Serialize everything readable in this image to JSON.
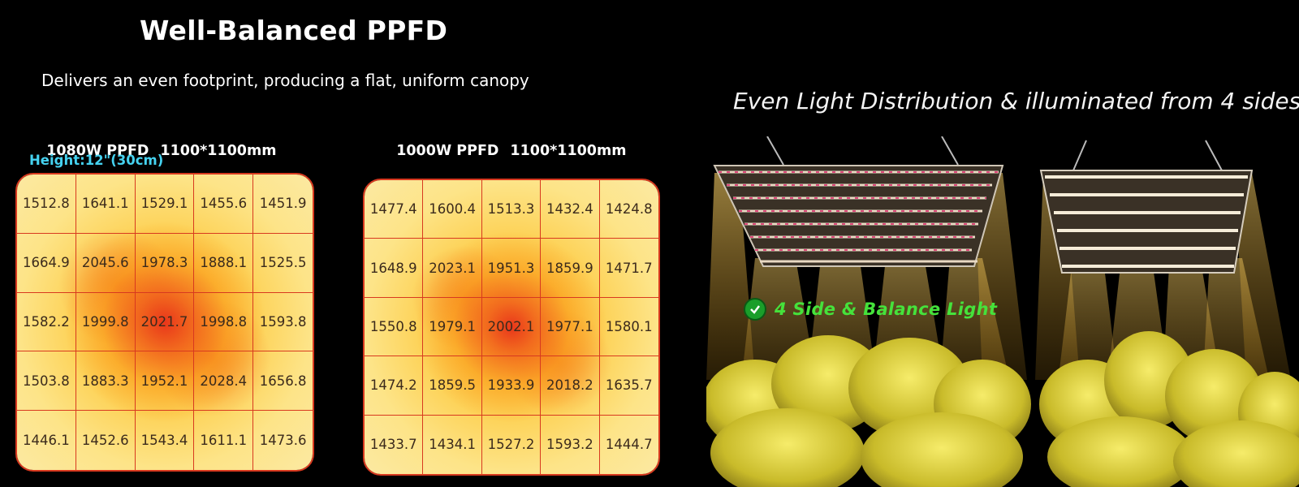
{
  "header": {
    "title": "Well-Balanced PPFD",
    "subtitle": "Delivers an even footprint, producing a flat, uniform canopy"
  },
  "left_grid": {
    "label": "1080W PPFD",
    "size": "1100*1100mm",
    "height": "Height:12\"(30cm)",
    "values": [
      [
        "1512.8",
        "1641.1",
        "1529.1",
        "1455.6",
        "1451.9"
      ],
      [
        "1664.9",
        "2045.6",
        "1978.3",
        "1888.1",
        "1525.5"
      ],
      [
        "1582.2",
        "1999.8",
        "2021.7",
        "1998.8",
        "1593.8"
      ],
      [
        "1503.8",
        "1883.3",
        "1952.1",
        "2028.4",
        "1656.8"
      ],
      [
        "1446.1",
        "1452.6",
        "1543.4",
        "1611.1",
        "1473.6"
      ]
    ]
  },
  "middle_grid": {
    "label": "1000W PPFD",
    "size": "1100*1100mm",
    "values": [
      [
        "1477.4",
        "1600.4",
        "1513.3",
        "1432.4",
        "1424.8"
      ],
      [
        "1648.9",
        "2023.1",
        "1951.3",
        "1859.9",
        "1471.7"
      ],
      [
        "1550.8",
        "1979.1",
        "2002.1",
        "1977.1",
        "1580.1"
      ],
      [
        "1474.2",
        "1859.5",
        "1933.9",
        "2018.2",
        "1635.7"
      ],
      [
        "1433.7",
        "1434.1",
        "1527.2",
        "1593.2",
        "1444.7"
      ]
    ]
  },
  "right_panel": {
    "heading": "Even Light Distribution & illuminated from 4 sides",
    "badge_text": "4 Side & Balance Light",
    "badge_icon": "check-circle-icon"
  },
  "colors": {
    "grid_line": "#d8391f",
    "height_label": "#45d2f0",
    "badge_text": "#45e23b",
    "heat_edge": "#fde080",
    "heat_core": "#e8301a"
  }
}
